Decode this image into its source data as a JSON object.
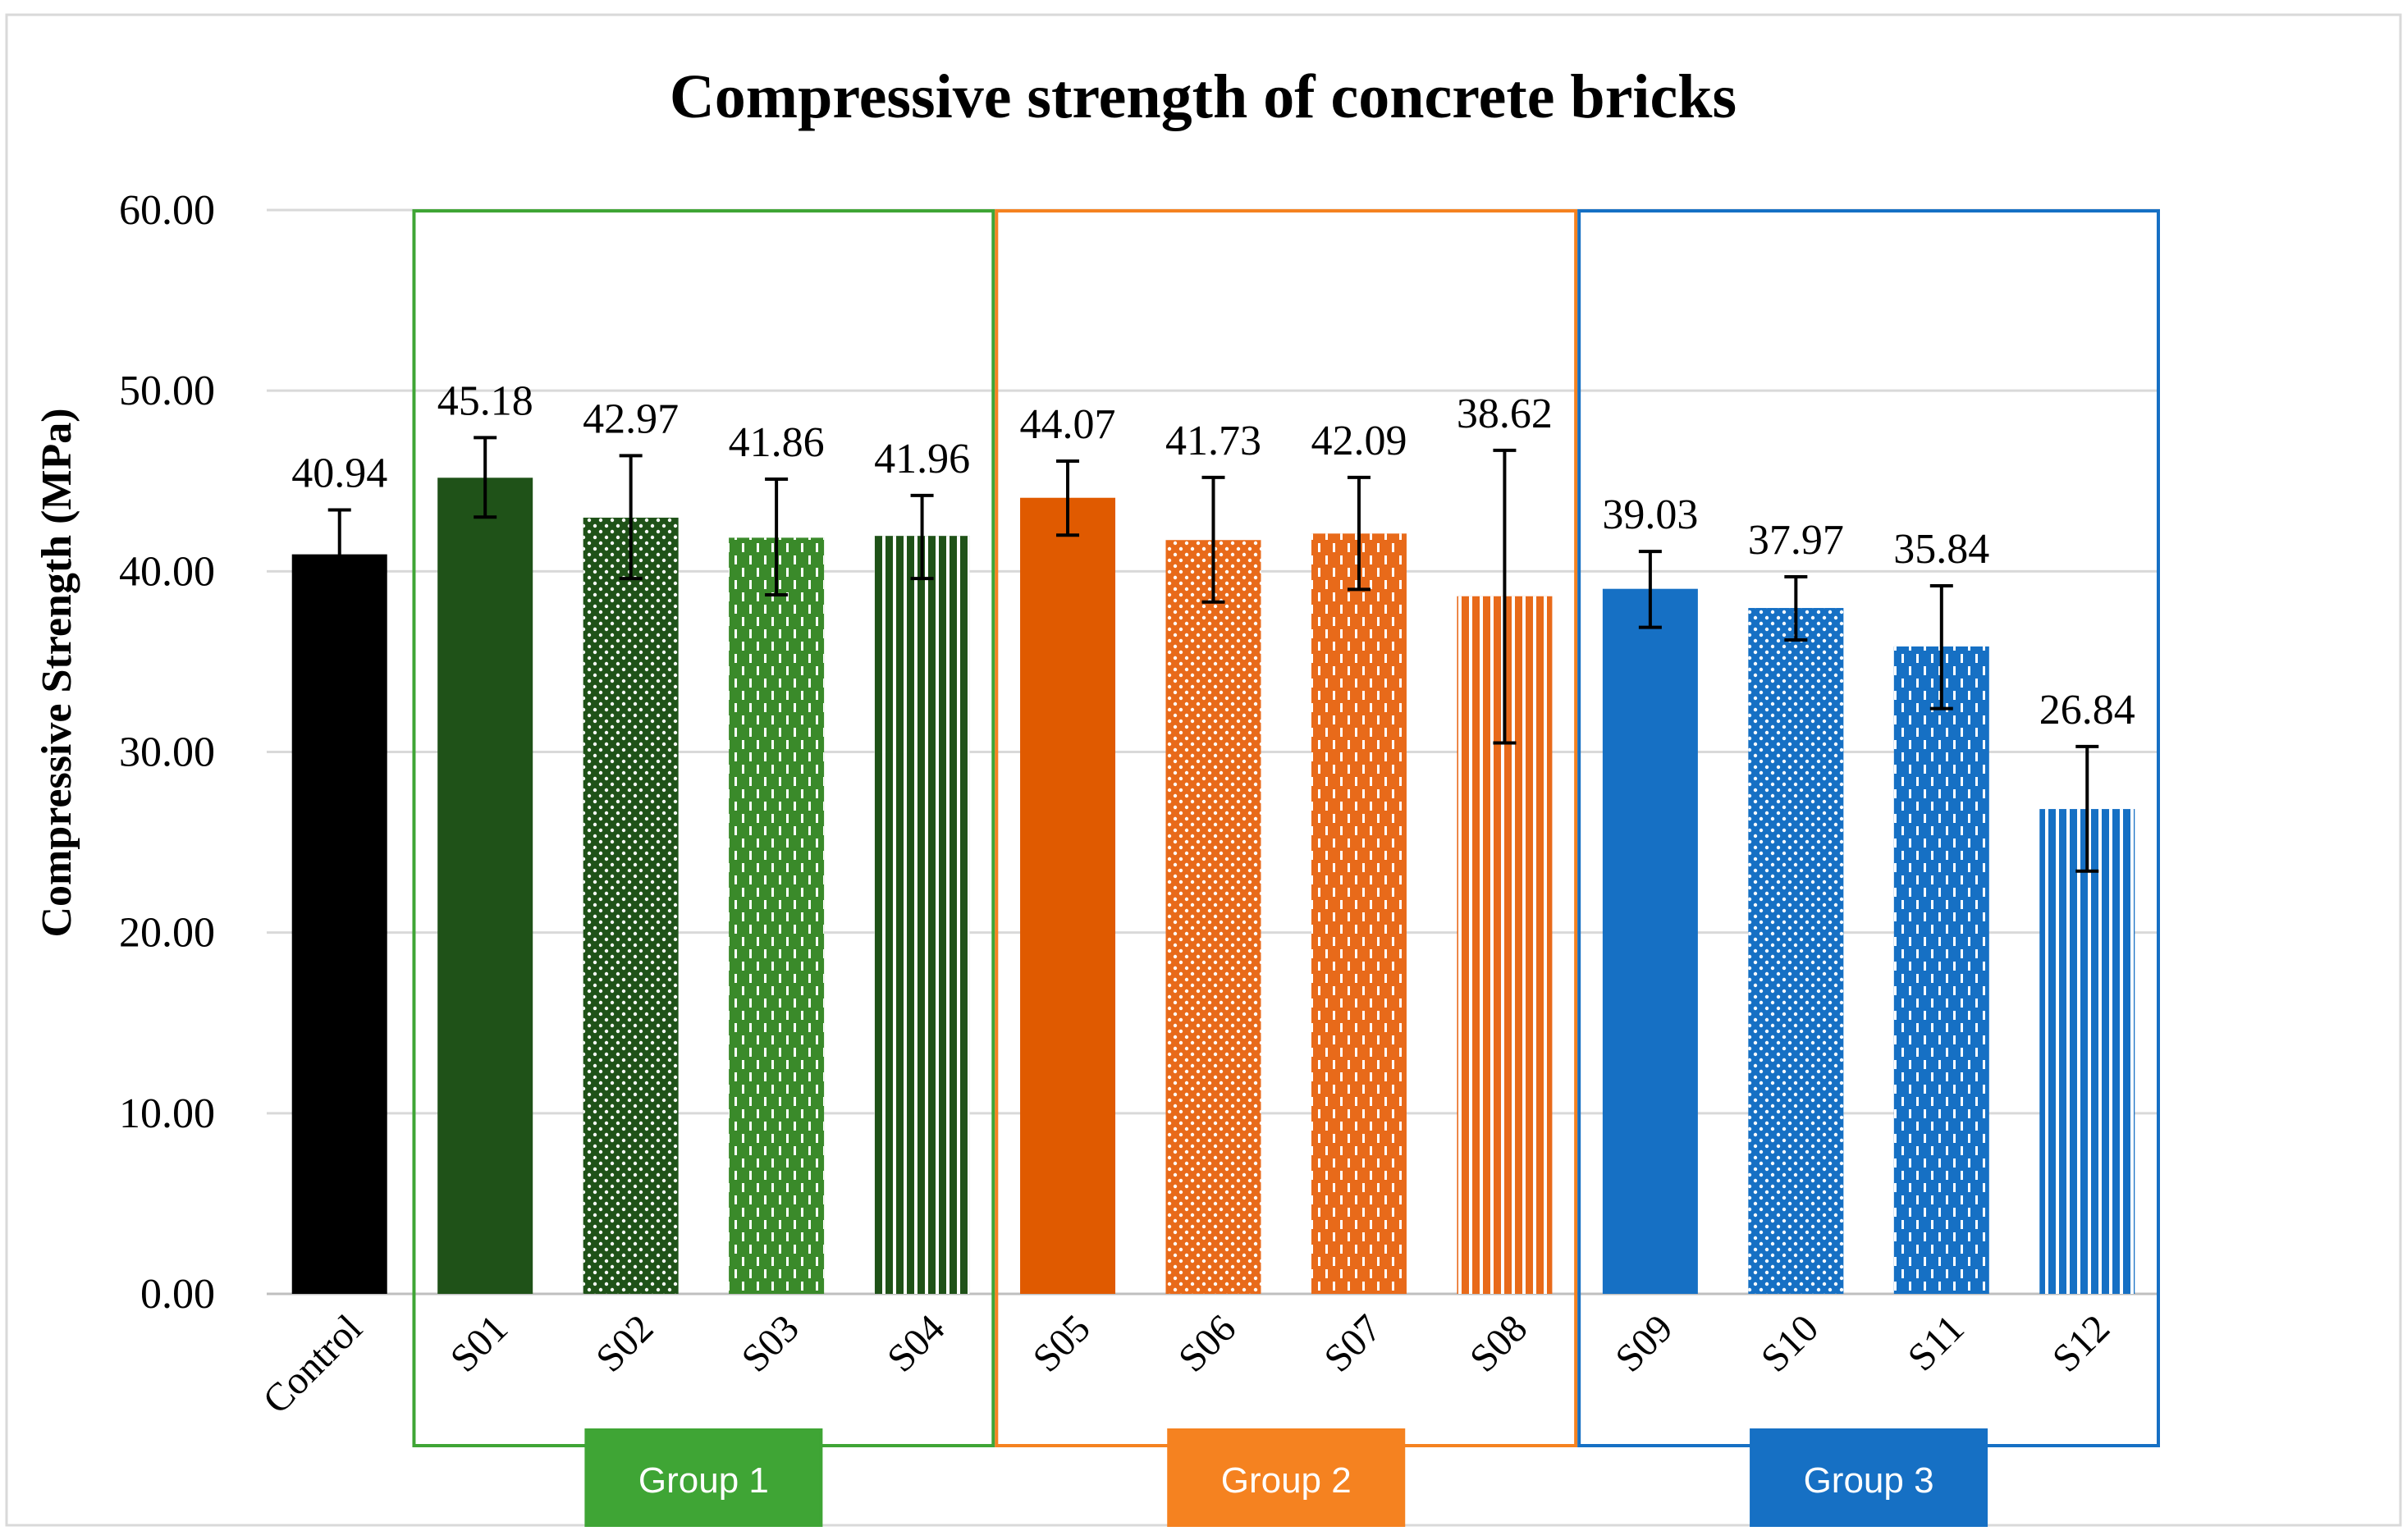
{
  "chart_data": {
    "type": "bar",
    "title": "Compressive strength of concrete bricks",
    "xlabel": "",
    "ylabel": "Compressive Strength (MPa)",
    "ylim": [
      0,
      60
    ],
    "yticks": [
      "0.00",
      "10.00",
      "20.00",
      "30.00",
      "40.00",
      "50.00",
      "60.00"
    ],
    "grid": true,
    "categories": [
      "Control",
      "S01",
      "S02",
      "S03",
      "S04",
      "S05",
      "S06",
      "S07",
      "S08",
      "S09",
      "S10",
      "S11",
      "S12"
    ],
    "values": [
      40.94,
      45.18,
      42.97,
      41.86,
      41.96,
      44.07,
      41.73,
      42.09,
      38.62,
      39.03,
      37.97,
      35.84,
      26.84
    ],
    "value_labels": [
      "40.94",
      "45.18",
      "42.97",
      "41.86",
      "41.96",
      "44.07",
      "41.73",
      "42.09",
      "38.62",
      "39.03",
      "37.97",
      "35.84",
      "26.84"
    ],
    "error_low": [
      38.4,
      43.0,
      39.6,
      38.7,
      39.6,
      42.0,
      38.3,
      39.0,
      30.5,
      36.9,
      36.2,
      32.4,
      23.4
    ],
    "error_high": [
      43.4,
      47.4,
      46.4,
      45.1,
      44.2,
      46.1,
      45.2,
      45.2,
      46.7,
      41.1,
      39.7,
      39.2,
      30.3
    ],
    "bar_colors": [
      "#000000",
      "#1f5218",
      "#1f5218",
      "#3a8a2a",
      "#1f5218",
      "#e05a00",
      "#e86a1a",
      "#e86a1a",
      "#e86a1a",
      "#1670c4",
      "#1670c4",
      "#1670c4",
      "#1670c4"
    ],
    "bar_patterns": [
      "solid",
      "solid",
      "dots",
      "dashes",
      "vlines",
      "solid",
      "dots",
      "dashes",
      "vlines",
      "solid",
      "dots",
      "dashes",
      "vlines"
    ],
    "groups": [
      {
        "label": "Group 1",
        "members": [
          "S01",
          "S02",
          "S03",
          "S04"
        ],
        "color": "#3fa535",
        "border": "#3fa535"
      },
      {
        "label": "Group 2",
        "members": [
          "S05",
          "S06",
          "S07",
          "S08"
        ],
        "color": "#f58220",
        "border": "#f58220"
      },
      {
        "label": "Group 3",
        "members": [
          "S09",
          "S10",
          "S11",
          "S12"
        ],
        "color": "#1670c4",
        "border": "#1670c4"
      }
    ]
  }
}
